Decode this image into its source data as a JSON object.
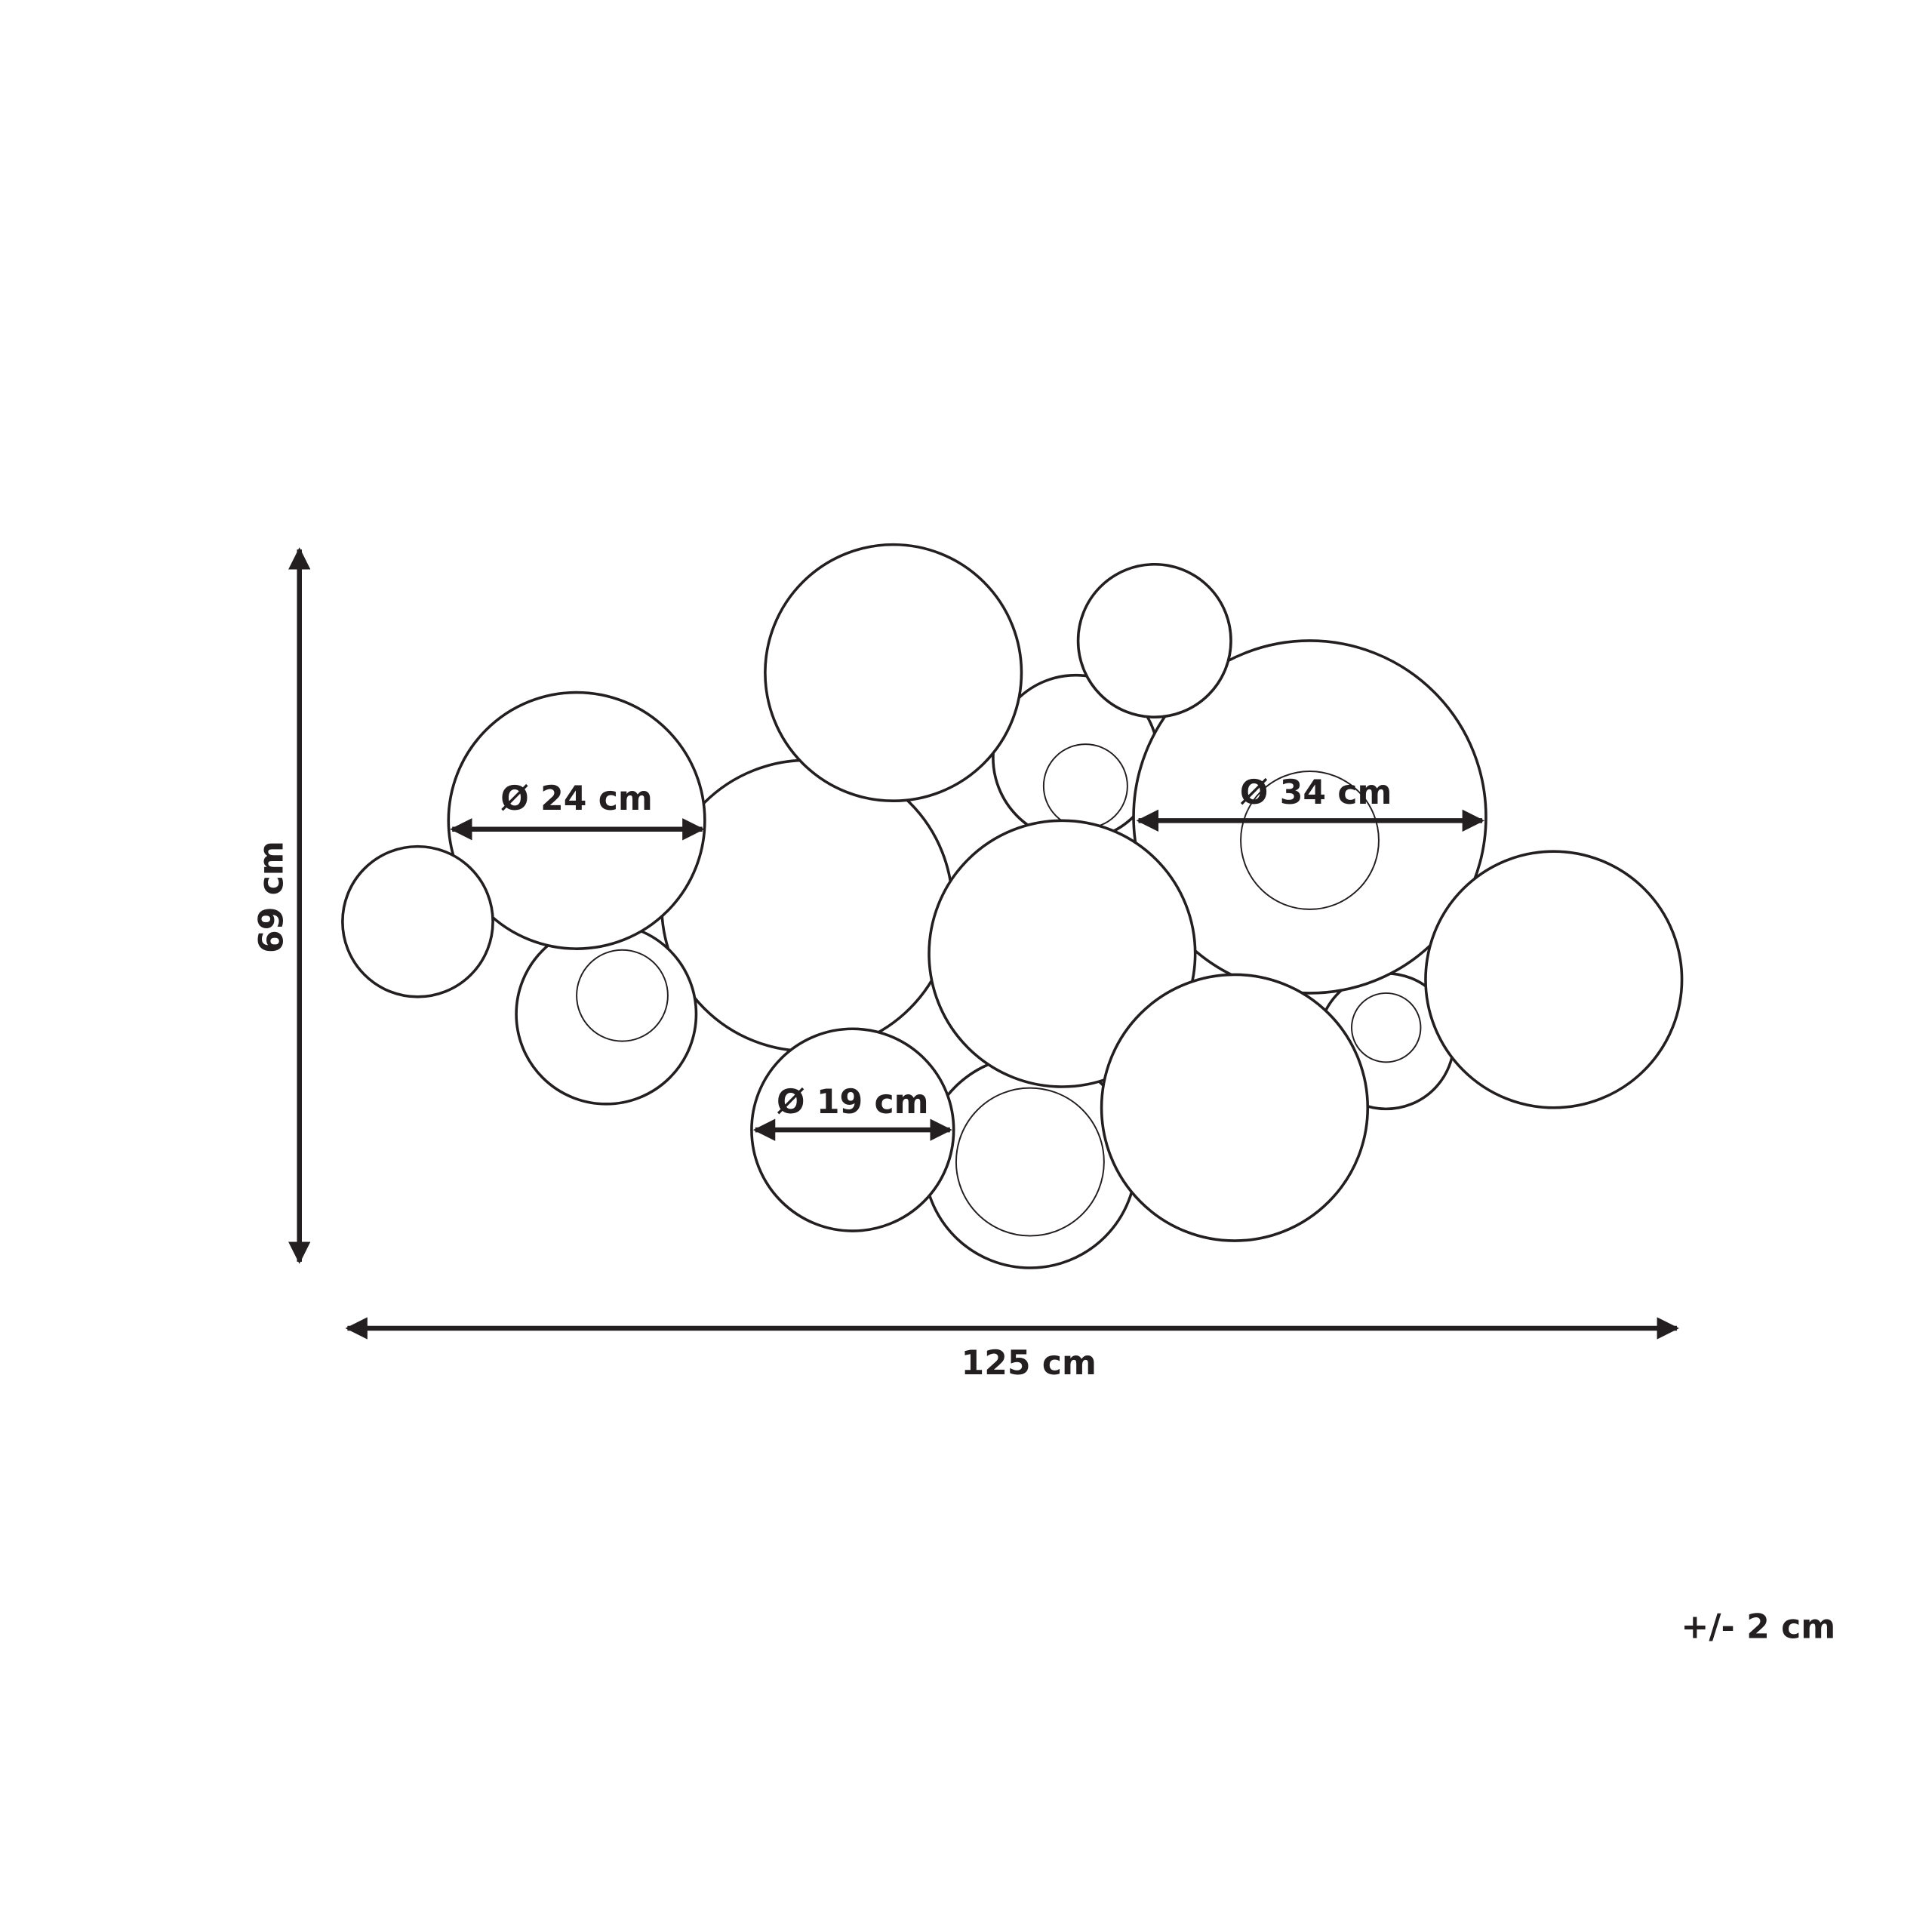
{
  "dimensions": {
    "height": "69 cm",
    "width": "125 cm",
    "tolerance": "+/- 2 cm"
  },
  "diameters": [
    "Ø 24 cm",
    "Ø 34 cm",
    "Ø 19 cm"
  ]
}
